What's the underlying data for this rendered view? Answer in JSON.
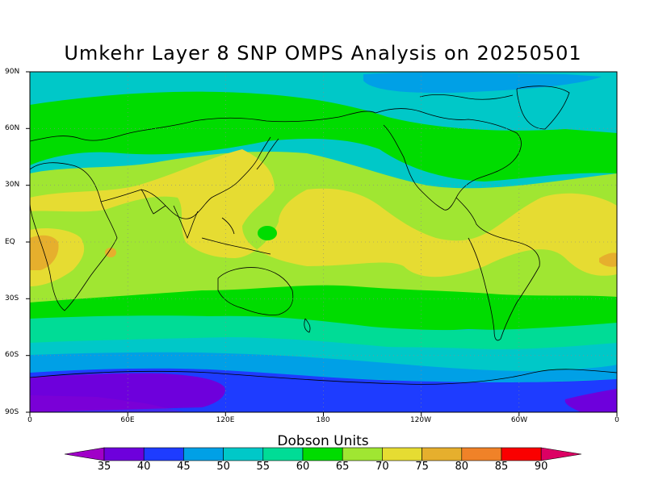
{
  "title": "Umkehr Layer 8 SNP OMPS Analysis on 20250501",
  "lat_labels": [
    "90N",
    "60N",
    "30N",
    "EQ",
    "30S",
    "60S",
    "90S"
  ],
  "lon_labels": [
    "0",
    "60E",
    "120E",
    "180",
    "120W",
    "60W",
    "0"
  ],
  "colorbar": {
    "title": "Dobson Units",
    "labels": [
      "35",
      "40",
      "45",
      "50",
      "55",
      "60",
      "65",
      "70",
      "75",
      "80",
      "85",
      "90"
    ],
    "colors": [
      "#a000c8",
      "#6e00dc",
      "#1e3cff",
      "#00a0e6",
      "#00c8c8",
      "#00dc96",
      "#00dc00",
      "#a0e632",
      "#e6dc32",
      "#e6af2d",
      "#f08228",
      "#fa0000",
      "#dc0064"
    ]
  },
  "map_colors": {
    "c35": "#a000c8",
    "c40": "#6e00dc",
    "c45": "#1e3cff",
    "c50": "#00a0e6",
    "c55": "#00c8c8",
    "c60": "#00dc96",
    "c65": "#00dc00",
    "c70": "#a0e632",
    "c75": "#e6dc32",
    "c80": "#e6af2d"
  }
}
